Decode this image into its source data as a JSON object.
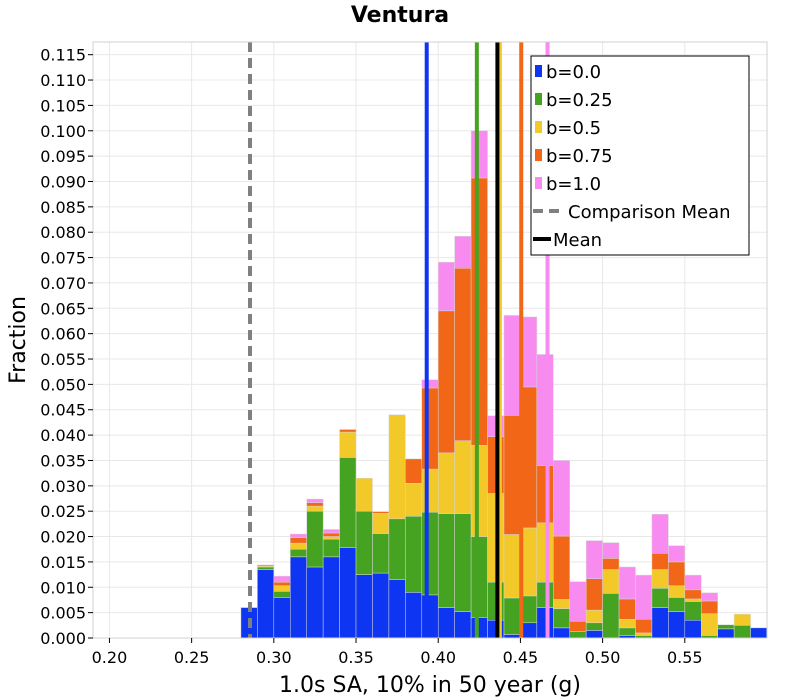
{
  "chart_data": {
    "type": "bar",
    "stacked": true,
    "title": "Ventura",
    "xlabel": "1.0s SA, 10% in 50 year (g)",
    "ylabel": "Fraction",
    "xlim": [
      0.19,
      0.6
    ],
    "ylim": [
      0,
      0.1175
    ],
    "bin_width": 0.01,
    "xticks": [
      "0.20",
      "0.25",
      "0.30",
      "0.35",
      "0.40",
      "0.45",
      "0.50",
      "0.55"
    ],
    "yticks": [
      "0.000",
      "0.005",
      "0.010",
      "0.015",
      "0.020",
      "0.025",
      "0.030",
      "0.035",
      "0.040",
      "0.045",
      "0.050",
      "0.055",
      "0.060",
      "0.065",
      "0.070",
      "0.075",
      "0.080",
      "0.085",
      "0.090",
      "0.095",
      "0.100",
      "0.105",
      "0.110",
      "0.115"
    ],
    "bins_x": [
      0.285,
      0.295,
      0.305,
      0.315,
      0.325,
      0.335,
      0.345,
      0.355,
      0.365,
      0.375,
      0.385,
      0.395,
      0.405,
      0.415,
      0.425,
      0.435,
      0.445,
      0.455,
      0.465,
      0.475,
      0.485,
      0.495,
      0.505,
      0.515,
      0.525,
      0.535,
      0.545,
      0.555,
      0.565,
      0.575,
      0.585,
      0.595
    ],
    "series": [
      {
        "name": "b=0.0",
        "color": "#0d35f2",
        "values": [
          0.006,
          0.0135,
          0.008,
          0.016,
          0.014,
          0.016,
          0.0178,
          0.0125,
          0.0128,
          0.0115,
          0.009,
          0.0085,
          0.006,
          0.0052,
          0.004,
          0.0035,
          0.0007,
          0.003,
          0.006,
          0.002,
          0,
          0.0015,
          0,
          0.0005,
          0,
          0.006,
          0.0052,
          0.0035,
          0,
          0.0018,
          0,
          0.002
        ]
      },
      {
        "name": "b=0.25",
        "color": "#46a322",
        "values": [
          0,
          0.0005,
          0.0012,
          0.0015,
          0.011,
          0.0035,
          0.0178,
          0.0125,
          0.0078,
          0.012,
          0.015,
          0.0163,
          0.0185,
          0.0193,
          0.016,
          0.0075,
          0.0072,
          0.0053,
          0.005,
          0.0038,
          0.0013,
          0.0015,
          0.0088,
          0.0015,
          0.0005,
          0.0038,
          0.0028,
          0.0037,
          0.0005,
          0.0008,
          0.0025,
          0
        ]
      },
      {
        "name": "b=0.5",
        "color": "#f2c929",
        "values": [
          0,
          0.0002,
          0.0011,
          0.0012,
          0.001,
          0.0005,
          0.005,
          0.0065,
          0.004,
          0.0205,
          0.0065,
          0.0085,
          0.012,
          0.0144,
          0.018,
          0.0175,
          0.0125,
          0.0134,
          0.0117,
          0.0018,
          0,
          0.0025,
          0.0047,
          0.0017,
          0.0005,
          0.0037,
          0.0023,
          0.0005,
          0.0043,
          0,
          0.0022,
          0
        ]
      },
      {
        "name": "b=0.75",
        "color": "#f26617",
        "values": [
          0,
          0.0002,
          0.0007,
          0.0011,
          0.0007,
          0.0007,
          0.0005,
          0,
          0.0003,
          0,
          0.0048,
          0.016,
          0.028,
          0.034,
          0.0527,
          0.0112,
          0.0235,
          0.0278,
          0.0113,
          0.0125,
          0.002,
          0.0062,
          0.0022,
          0.004,
          0.0027,
          0.0032,
          0.0047,
          0.0018,
          0.0025,
          0,
          0,
          0
        ]
      },
      {
        "name": "b=1.0",
        "color": "#f78bf0",
        "values": [
          0,
          0,
          0.0012,
          0.0007,
          0.0007,
          0.0007,
          0,
          0,
          0,
          0,
          0,
          0.0016,
          0.0096,
          0.0063,
          0.0093,
          0.0041,
          0.0197,
          0.0138,
          0.0219,
          0.0149,
          0.0078,
          0.0075,
          0.0031,
          0.0063,
          0.0087,
          0.0077,
          0.0032,
          0.0029,
          0.0016,
          0,
          0,
          0
        ]
      }
    ],
    "vlines": [
      {
        "name": "b=0.0",
        "x": 0.393,
        "color": "#0d35f2",
        "style": "solid"
      },
      {
        "name": "b=0.25",
        "x": 0.4235,
        "color": "#46a322",
        "style": "solid"
      },
      {
        "name": "b=0.5",
        "x": 0.4375,
        "color": "#f2c929",
        "style": "solid"
      },
      {
        "name": "b=0.75",
        "x": 0.4505,
        "color": "#f26617",
        "style": "solid"
      },
      {
        "name": "b=1.0",
        "x": 0.4665,
        "color": "#f78bf0",
        "style": "solid"
      },
      {
        "name": "Comparison Mean",
        "x": 0.2855,
        "color": "#808080",
        "style": "dashed"
      },
      {
        "name": "Mean",
        "x": 0.436,
        "color": "#000000",
        "style": "solid"
      }
    ],
    "legend": {
      "position": "top-right",
      "entries": [
        {
          "label": "b=0.0",
          "color": "#0d35f2",
          "kind": "box"
        },
        {
          "label": "b=0.25",
          "color": "#46a322",
          "kind": "box"
        },
        {
          "label": "b=0.5",
          "color": "#f2c929",
          "kind": "box"
        },
        {
          "label": "b=0.75",
          "color": "#f26617",
          "kind": "box"
        },
        {
          "label": "b=1.0",
          "color": "#f78bf0",
          "kind": "box"
        },
        {
          "label": "Comparison Mean",
          "color": "#808080",
          "kind": "dashed"
        },
        {
          "label": "Mean",
          "color": "#000000",
          "kind": "line"
        }
      ]
    }
  }
}
